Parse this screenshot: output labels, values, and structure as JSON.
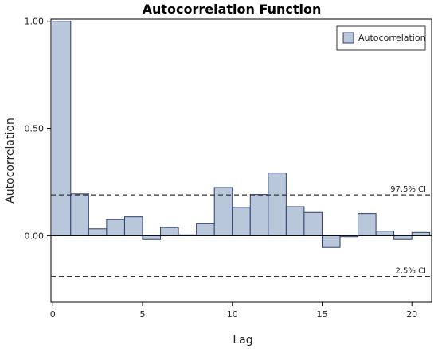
{
  "chart_data": {
    "type": "bar",
    "title": "Autocorrelation Function",
    "xlabel": "Lag",
    "ylabel": "Autocorrelation",
    "xlim": [
      -0.1,
      21.1
    ],
    "ylim": [
      -0.31,
      1.01
    ],
    "xticks": [
      0,
      5,
      10,
      15,
      20
    ],
    "xtick_labels": [
      "0",
      "5",
      "10",
      "15",
      "20"
    ],
    "yticks": [
      0.0,
      0.5,
      1.0
    ],
    "ytick_labels": [
      "0.00",
      "0.50",
      "1.00"
    ],
    "lags": [
      0,
      1,
      2,
      3,
      4,
      5,
      6,
      7,
      8,
      9,
      10,
      11,
      12,
      13,
      14,
      15,
      16,
      17,
      18,
      19,
      20
    ],
    "values": [
      1.0,
      0.195,
      0.032,
      0.075,
      0.088,
      -0.018,
      0.038,
      0.004,
      0.056,
      0.224,
      0.132,
      0.192,
      0.292,
      0.135,
      0.108,
      -0.055,
      -0.005,
      0.103,
      0.021,
      -0.018,
      0.015
    ],
    "series": [
      {
        "name": "Autocorrelation"
      }
    ],
    "ci_upper": {
      "value": 0.19,
      "label": "97.5% CI"
    },
    "ci_lower": {
      "value": -0.19,
      "label": "2.5% CI"
    },
    "legend_position": "top-right",
    "grid": false,
    "colors": {
      "bar_fill": "#b8c7da",
      "bar_stroke": "#2f3d6e",
      "ci_line": "#333333"
    }
  }
}
